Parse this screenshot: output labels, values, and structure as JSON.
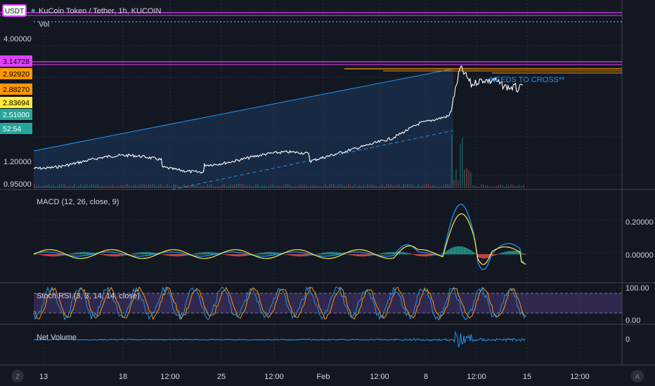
{
  "header": {
    "currency_badge": "USDT",
    "symbol_title": "KuCoin Token / Tether, 1h, KUCOIN",
    "volume_label": "Vol"
  },
  "price_pane": {
    "axis_labels": [
      "4.00000",
      "1.20000",
      "0.95000"
    ],
    "price_tags": [
      {
        "value": "3.14728",
        "color": "#e040fb",
        "text_color": "#000000"
      },
      {
        "value": "2.92920",
        "color": "#ff9800",
        "text_color": "#000000"
      },
      {
        "value": "2.88270",
        "color": "#ff9800",
        "text_color": "#000000"
      },
      {
        "value": "2.83694",
        "color": "#ffeb3b",
        "text_color": "#000000"
      },
      {
        "value": "2.51000",
        "color": "#26a69a",
        "text_color": "#ffffff"
      },
      {
        "value": "52:54",
        "color": "#26a69a",
        "text_color": "#ffffff"
      }
    ],
    "annotation": "NEEDS TO CROSS**"
  },
  "macd_pane": {
    "title": "MACD (12, 26, close, 9)",
    "axis_labels": [
      "0.20000",
      "0.00000"
    ]
  },
  "stoch_pane": {
    "title": "Stoch RSI (3, 3, 14, 14, close)",
    "axis_labels": [
      "100.00",
      "0.00"
    ]
  },
  "netvol_pane": {
    "title": "Net Volume",
    "axis_labels": [
      "0"
    ]
  },
  "time_axis": {
    "labels": [
      "13",
      "18",
      "12:00",
      "25",
      "12:00",
      "Feb",
      "12:00",
      "8",
      "12:00",
      "15",
      "12:00"
    ]
  },
  "footer": {
    "z_button": "Z",
    "a_button": "A"
  },
  "colors": {
    "background": "#131722",
    "grid": "#363c4e",
    "price_line": "#ffffff",
    "trend_line": "#2196f3",
    "fill": "#1e3a5f",
    "macd_line": "#2196f3",
    "signal_line": "#ffeb3b",
    "stoch_k": "#2196f3",
    "stoch_d": "#ff9800",
    "stoch_band": "#7e57c2"
  }
}
